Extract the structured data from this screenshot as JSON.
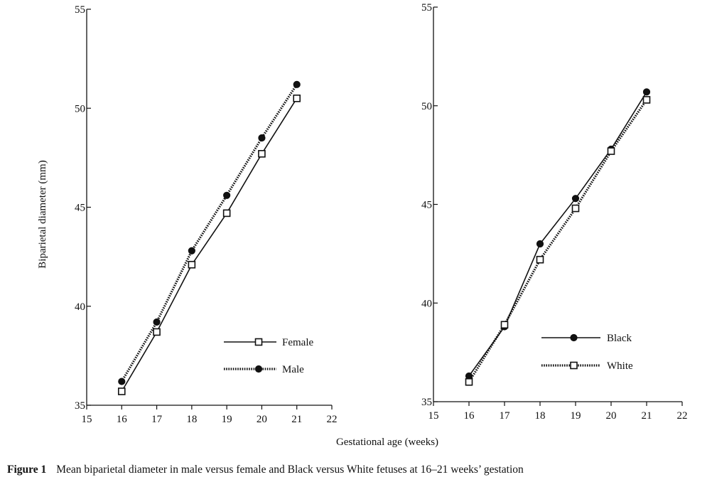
{
  "chart_data": [
    {
      "type": "line",
      "ylabel": "Biparietal diameter (mm)",
      "xlim": [
        15,
        22
      ],
      "ylim": [
        35,
        55
      ],
      "xticks": [
        15,
        16,
        17,
        18,
        19,
        20,
        21,
        22
      ],
      "yticks": [
        35,
        40,
        45,
        50,
        55
      ],
      "grid": false,
      "legend": "lower-right",
      "series": [
        {
          "name": "Female",
          "style": "solid",
          "marker": "open-square",
          "color": "#111111",
          "x": [
            16,
            17,
            18,
            19,
            20,
            21
          ],
          "y": [
            35.7,
            38.7,
            42.1,
            44.7,
            47.7,
            50.5
          ]
        },
        {
          "name": "Male",
          "style": "dotted",
          "marker": "filled-circle",
          "color": "#111111",
          "x": [
            16,
            17,
            18,
            19,
            20,
            21
          ],
          "y": [
            36.2,
            39.2,
            42.8,
            45.6,
            48.5,
            51.2
          ]
        }
      ]
    },
    {
      "type": "line",
      "xlim": [
        15,
        22
      ],
      "ylim": [
        35,
        55
      ],
      "xticks": [
        15,
        16,
        17,
        18,
        19,
        20,
        21,
        22
      ],
      "yticks": [
        35,
        40,
        45,
        50,
        55
      ],
      "grid": false,
      "legend": "lower-right",
      "series": [
        {
          "name": "Black",
          "style": "solid",
          "marker": "filled-circle",
          "color": "#111111",
          "x": [
            16,
            17,
            18,
            19,
            20,
            21
          ],
          "y": [
            36.3,
            38.8,
            43.0,
            45.3,
            47.8,
            50.7
          ]
        },
        {
          "name": "White",
          "style": "dotted",
          "marker": "open-square",
          "color": "#111111",
          "x": [
            16,
            17,
            18,
            19,
            20,
            21
          ],
          "y": [
            36.0,
            38.9,
            42.2,
            44.8,
            47.7,
            50.3
          ]
        }
      ]
    }
  ],
  "shared_xlabel": "Gestational age (weeks)",
  "caption": {
    "label": "Figure 1",
    "text": "Mean biparietal diameter in male versus female and Black versus White fetuses at 16–21 weeks’ gestation"
  }
}
